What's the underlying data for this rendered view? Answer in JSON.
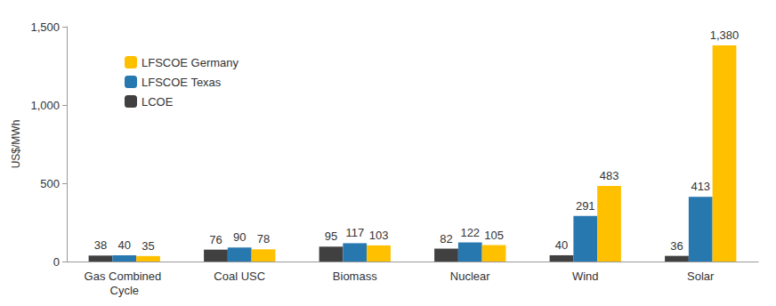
{
  "chart_data": {
    "type": "bar",
    "y_label": "US$/MWh",
    "categories": [
      "Gas Combined Cycle",
      "Coal USC",
      "Biomass",
      "Nuclear",
      "Wind",
      "Solar"
    ],
    "series": [
      {
        "name": "LCOE",
        "color": "#404040",
        "values": [
          38,
          76,
          95,
          82,
          40,
          36
        ]
      },
      {
        "name": "LFSCOE Texas",
        "color": "#2878b0",
        "values": [
          40,
          90,
          117,
          122,
          291,
          413
        ]
      },
      {
        "name": "LFSCOE Germany",
        "color": "#ffc000",
        "values": [
          35,
          78,
          103,
          105,
          483,
          1380
        ],
        "value_labels": [
          "35",
          "78",
          "103",
          "105",
          "483",
          "1,380"
        ]
      }
    ],
    "ylim": [
      0,
      1500
    ],
    "yticks": [
      0,
      500,
      {
        "value": 1000,
        "label": "1,000"
      },
      {
        "value": 1500,
        "label": "1,500"
      }
    ],
    "grid": false,
    "legend": "top-left",
    "data_labels": true
  }
}
